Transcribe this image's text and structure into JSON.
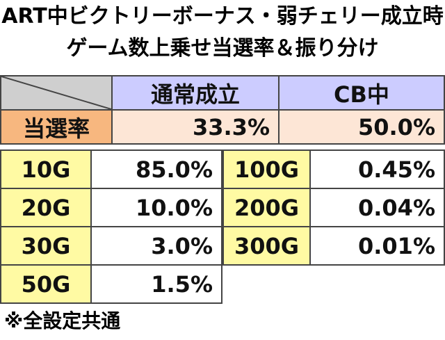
{
  "title": [
    "ART中ビクトリーボーナス・弱チェリー成立時",
    "ゲーム数上乗せ当選率＆振り分け"
  ],
  "summary_table": {
    "headers": [
      "通常成立",
      "CB中"
    ],
    "row_label": "当選率",
    "values": [
      "33.3%",
      "50.0%"
    ]
  },
  "distribution": {
    "left": [
      [
        "10G",
        "85.0%"
      ],
      [
        "20G",
        "10.0%"
      ],
      [
        "30G",
        "3.0%"
      ],
      [
        "50G",
        "1.5%"
      ]
    ],
    "right": [
      [
        "100G",
        "0.45%"
      ],
      [
        "200G",
        "0.04%"
      ],
      [
        "300G",
        "0.01%"
      ]
    ]
  },
  "note": "※全設定共通"
}
